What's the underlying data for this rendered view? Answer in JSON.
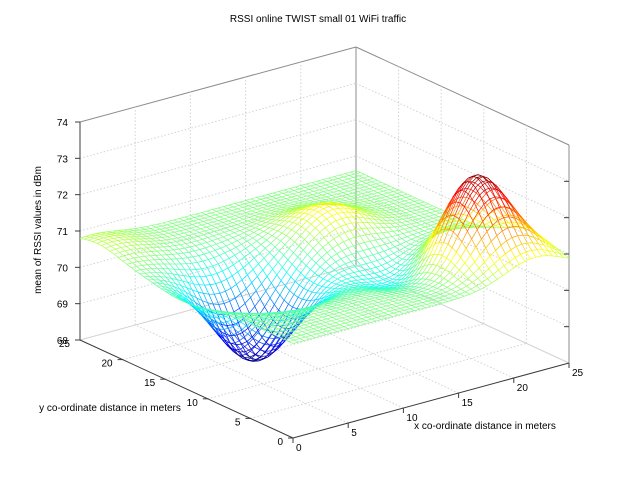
{
  "chart_data": {
    "type": "surface",
    "title": "RSSI online TWIST small 01 WiFi traffic",
    "xlabel": "x co-ordinate distance in meters",
    "ylabel": "y co-ordinate distance in meters",
    "zlabel": "mean of RSSI values in dBm",
    "xlim": [
      0,
      25
    ],
    "ylim": [
      0,
      25
    ],
    "zlim": [
      68,
      74
    ],
    "x_ticks": [
      "0",
      "5",
      "10",
      "15",
      "20",
      "25"
    ],
    "y_ticks": [
      "0",
      "5",
      "10",
      "15",
      "20",
      "25"
    ],
    "z_ticks": [
      "68",
      "69",
      "70",
      "71",
      "72",
      "73",
      "74"
    ],
    "grid": true,
    "colormap": "jet",
    "surface_features": {
      "base_level": 70.6,
      "peaks": [
        {
          "x": 20.5,
          "y": 5.5,
          "z": 73.0
        },
        {
          "x": 16.0,
          "y": 16.5,
          "z": 71.3
        },
        {
          "x": 22.5,
          "y": 1.5,
          "z": 71.1
        },
        {
          "x": 1.0,
          "y": 23.0,
          "z": 70.9
        }
      ],
      "valleys": [
        {
          "x": 6.5,
          "y": 13.0,
          "z": 68.2
        },
        {
          "x": 16.5,
          "y": 8.5,
          "z": 69.9
        }
      ]
    }
  }
}
